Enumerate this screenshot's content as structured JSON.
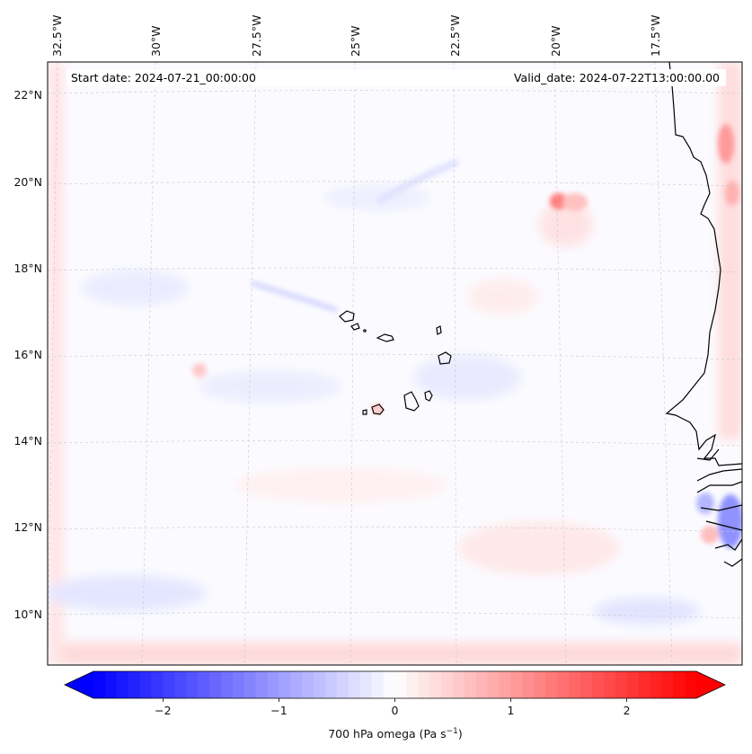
{
  "header": {
    "start_date": "Start date: 2024-07-21_00:00:00",
    "valid_date": "Valid_date: 2024-07-22T13:00:00.00"
  },
  "longitude_labels": [
    "32.5°W",
    "30°W",
    "27.5°W",
    "25°W",
    "22.5°W",
    "20°W",
    "17.5°W"
  ],
  "latitude_labels": [
    "22°N",
    "20°N",
    "18°N",
    "16°N",
    "14°N",
    "12°N",
    "10°N"
  ],
  "colorbar": {
    "ticks": [
      "−2",
      "−1",
      "0",
      "1",
      "2"
    ],
    "tick_values": [
      -2,
      -1,
      0,
      1,
      2
    ],
    "range": [
      -2.6,
      2.6
    ],
    "label_prefix": "700 hPa omega (Pa s",
    "label_sup": "−1",
    "label_suffix": ")",
    "colors": {
      "negative": "#0000ff",
      "zero": "#ffffff",
      "positive": "#ff0000"
    }
  }
}
